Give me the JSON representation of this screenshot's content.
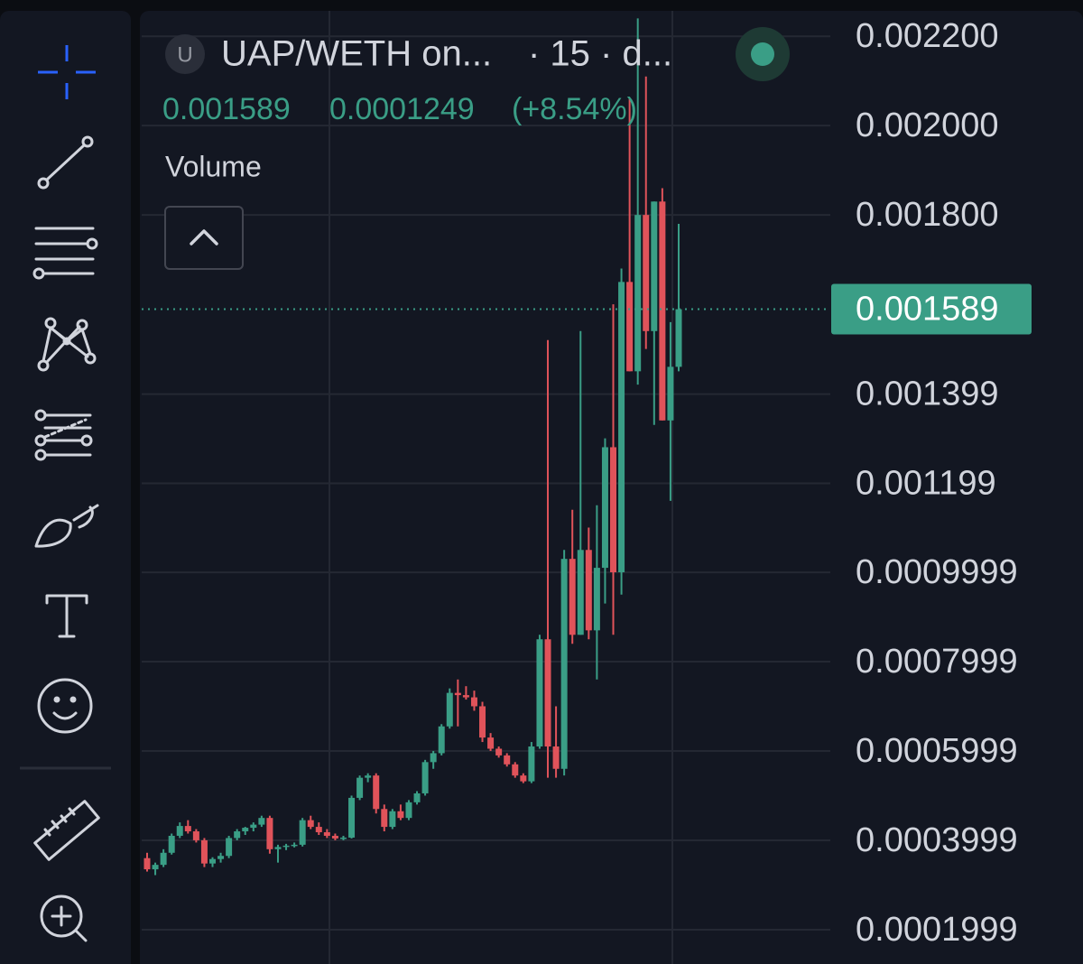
{
  "header": {
    "symbol_initial": "U",
    "title": "UAP/WETH on...",
    "interval": "· 15 · d...",
    "close": 0.001589,
    "change": 0.0001249,
    "change_percent": {
      "value": 8.54,
      "label": "(+8.54%)"
    },
    "indicator": "Volume"
  },
  "chart_data": {
    "type": "candlestick",
    "up_color": "#3a9e86",
    "down_color": "#e0535a",
    "ylim": [
      0.000123,
      0.002257
    ],
    "yticks": [
      {
        "value": 0.0022,
        "label": "0.002200"
      },
      {
        "value": 0.002,
        "label": "0.002000"
      },
      {
        "value": 0.0018,
        "label": "0.001800"
      },
      {
        "value": 0.001399,
        "label": "0.001399"
      },
      {
        "value": 0.001199,
        "label": "0.001199"
      },
      {
        "value": 0.0009999,
        "label": "0.0009999"
      },
      {
        "value": 0.0007999,
        "label": "0.0007999"
      },
      {
        "value": 0.0005999,
        "label": "0.0005999"
      },
      {
        "value": 0.0003999,
        "label": "0.0003999"
      },
      {
        "value": 0.0001999,
        "label": "0.0001999"
      }
    ],
    "grid": true,
    "last_price": 0.001589,
    "open": [
      0.00036,
      0.000335,
      0.000345,
      0.000372,
      0.00041,
      0.000432,
      0.00042,
      0.0004,
      0.000348,
      0.000358,
      0.000365,
      0.000405,
      0.00042,
      0.000428,
      0.000435,
      0.00045,
      0.00038,
      0.000385,
      0.000388,
      0.00039,
      0.000445,
      0.00043,
      0.000418,
      0.00041,
      0.000404,
      0.000406,
      0.000495,
      0.00054,
      0.000545,
      0.00047,
      0.00043,
      0.000465,
      0.00045,
      0.000485,
      0.000505,
      0.000575,
      0.000595,
      0.000655,
      0.00073,
      0.000725,
      0.00072,
      0.0007,
      0.00063,
      0.000605,
      0.00059,
      0.00057,
      0.000545,
      0.000532,
      0.00061,
      0.00085,
      0.00061,
      0.00056,
      0.00103,
      0.00086,
      0.00105,
      0.00087,
      0.00101,
      0.00128,
      0.001,
      0.00165,
      0.00145,
      0.0018,
      0.00154,
      0.00183,
      0.00134,
      0.00146
    ],
    "high": [
      0.000372,
      0.00035,
      0.00038,
      0.000415,
      0.00044,
      0.000445,
      0.000425,
      0.000405,
      0.000362,
      0.000372,
      0.00041,
      0.000425,
      0.00043,
      0.00044,
      0.000455,
      0.000455,
      0.00039,
      0.000392,
      0.000395,
      0.00045,
      0.000455,
      0.00044,
      0.000425,
      0.000415,
      0.00041,
      0.0005,
      0.000545,
      0.00055,
      0.00055,
      0.00048,
      0.00047,
      0.00048,
      0.00049,
      0.00051,
      0.00058,
      0.0006,
      0.00066,
      0.00074,
      0.00076,
      0.000745,
      0.000735,
      0.00071,
      0.00064,
      0.00061,
      0.000595,
      0.000575,
      0.00055,
      0.00062,
      0.00086,
      0.00152,
      0.0007,
      0.00105,
      0.00114,
      0.00154,
      0.0011,
      0.00115,
      0.0013,
      0.0016,
      0.00168,
      0.00206,
      0.00224,
      0.00211,
      0.00183,
      0.00186,
      0.00156,
      0.00178
    ],
    "low": [
      0.00033,
      0.000322,
      0.00034,
      0.000368,
      0.000405,
      0.000415,
      0.000395,
      0.00034,
      0.00034,
      0.00035,
      0.00036,
      0.0004,
      0.000412,
      0.00042,
      0.00043,
      0.00037,
      0.00035,
      0.000378,
      0.000384,
      0.000386,
      0.000425,
      0.000412,
      0.000405,
      0.0004,
      0.0004,
      0.000404,
      0.00049,
      0.00053,
      0.00046,
      0.00042,
      0.000425,
      0.000445,
      0.000445,
      0.00048,
      0.0005,
      0.00056,
      0.00059,
      0.00065,
      0.000655,
      0.000715,
      0.00069,
      0.00062,
      0.0006,
      0.000585,
      0.000565,
      0.00054,
      0.000528,
      0.000528,
      0.000605,
      0.00054,
      0.00054,
      0.000545,
      0.00084,
      0.00086,
      0.00085,
      0.00076,
      0.00093,
      0.00086,
      0.00095,
      0.00145,
      0.00142,
      0.0015,
      0.00133,
      0.00134,
      0.00116,
      0.00145
    ],
    "close": [
      0.000335,
      0.000345,
      0.000372,
      0.00041,
      0.000432,
      0.00042,
      0.0004,
      0.000348,
      0.000358,
      0.000365,
      0.000405,
      0.00042,
      0.000428,
      0.000435,
      0.00045,
      0.00038,
      0.000385,
      0.000388,
      0.00039,
      0.000445,
      0.00043,
      0.000418,
      0.00041,
      0.000404,
      0.000406,
      0.000495,
      0.00054,
      0.000545,
      0.00047,
      0.00043,
      0.000465,
      0.00045,
      0.000485,
      0.000505,
      0.000575,
      0.000595,
      0.000655,
      0.00073,
      0.000725,
      0.00072,
      0.0007,
      0.00063,
      0.000605,
      0.00059,
      0.00057,
      0.000545,
      0.000532,
      0.00061,
      0.00085,
      0.00061,
      0.00056,
      0.00103,
      0.00086,
      0.00105,
      0.00087,
      0.00101,
      0.00128,
      0.001,
      0.00165,
      0.00145,
      0.0018,
      0.00154,
      0.00183,
      0.00134,
      0.00146,
      0.001589
    ]
  }
}
